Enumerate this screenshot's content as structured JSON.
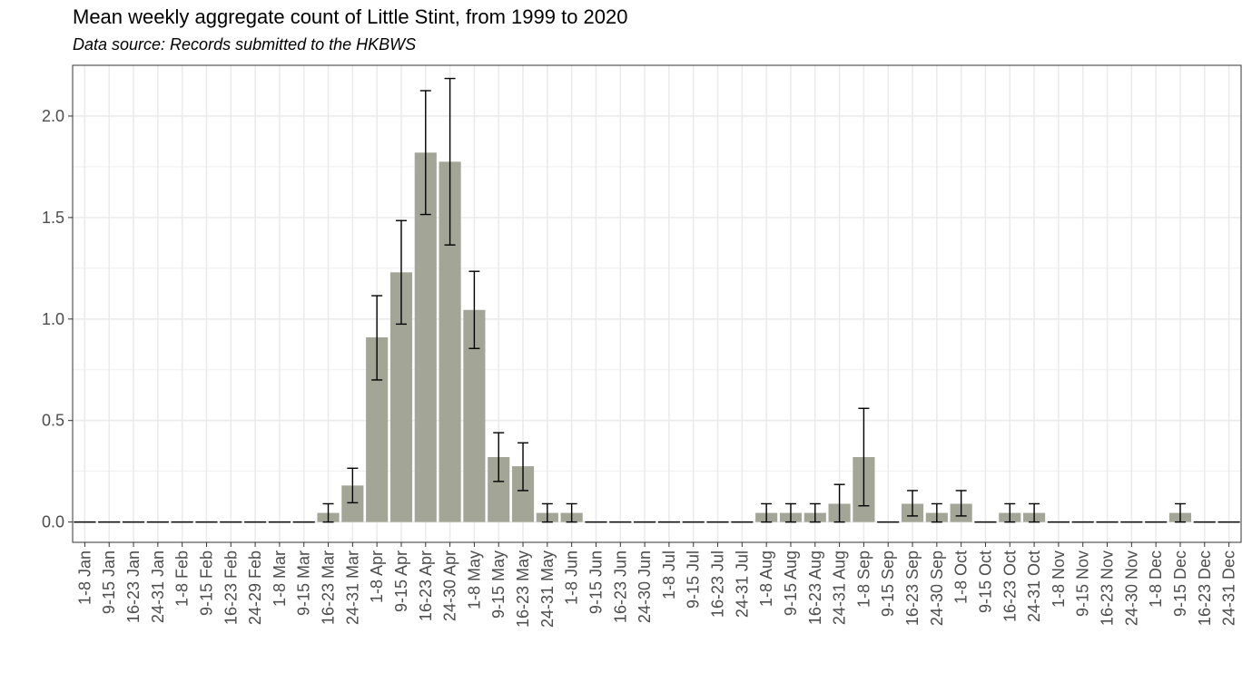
{
  "chart_data": {
    "type": "bar",
    "title": "Mean weekly aggregate count of Little Stint, from 1999 to 2020",
    "subtitle": "Data source: Records submitted to the HKBWS",
    "xlabel": "",
    "ylabel": "",
    "ylim": [
      -0.1,
      2.25
    ],
    "yticks": [
      0.0,
      0.5,
      1.0,
      1.5,
      2.0
    ],
    "ytick_labels": [
      "0.0",
      "0.5",
      "1.0",
      "1.5",
      "2.0"
    ],
    "grid": true,
    "colors": {
      "bar": "#a3a697",
      "error": "#000000",
      "grid": "#ebebeb",
      "zero_line": "#000000"
    },
    "categories": [
      "1-8 Jan",
      "9-15 Jan",
      "16-23 Jan",
      "24-31 Jan",
      "1-8 Feb",
      "9-15 Feb",
      "16-23 Feb",
      "24-29 Feb",
      "1-8 Mar",
      "9-15 Mar",
      "16-23 Mar",
      "24-31 Mar",
      "1-8 Apr",
      "9-15 Apr",
      "16-23 Apr",
      "24-30 Apr",
      "1-8 May",
      "9-15 May",
      "16-23 May",
      "24-31 May",
      "1-8 Jun",
      "9-15 Jun",
      "16-23 Jun",
      "24-30 Jun",
      "1-8 Jul",
      "9-15 Jul",
      "16-23 Jul",
      "24-31 Jul",
      "1-8 Aug",
      "9-15 Aug",
      "16-23 Aug",
      "24-31 Aug",
      "1-8 Sep",
      "9-15 Sep",
      "16-23 Sep",
      "24-30 Sep",
      "1-8 Oct",
      "9-15 Oct",
      "16-23 Oct",
      "24-31 Oct",
      "1-8 Nov",
      "9-15 Nov",
      "16-23 Nov",
      "24-30 Nov",
      "1-8 Dec",
      "9-15 Dec",
      "16-23 Dec",
      "24-31 Dec"
    ],
    "values": [
      0,
      0,
      0,
      0,
      0,
      0,
      0,
      0,
      0,
      0,
      0.045,
      0.18,
      0.91,
      1.23,
      1.82,
      1.775,
      1.045,
      0.32,
      0.275,
      0.045,
      0.045,
      0,
      0,
      0,
      0,
      0,
      0,
      0,
      0.045,
      0.045,
      0.045,
      0.09,
      0.32,
      0,
      0.09,
      0.045,
      0.09,
      0,
      0.045,
      0.045,
      0,
      0,
      0,
      0,
      0,
      0.045,
      0,
      0
    ],
    "error_low": [
      null,
      null,
      null,
      null,
      null,
      null,
      null,
      null,
      null,
      null,
      0.0,
      0.095,
      0.7,
      0.975,
      1.515,
      1.365,
      0.855,
      0.2,
      0.155,
      0.0,
      0.0,
      null,
      null,
      null,
      null,
      null,
      null,
      null,
      0.0,
      0.0,
      0.0,
      0.0,
      0.08,
      null,
      0.03,
      0.0,
      0.03,
      null,
      0.0,
      0.0,
      null,
      null,
      null,
      null,
      null,
      0.0,
      null,
      null
    ],
    "error_high": [
      null,
      null,
      null,
      null,
      null,
      null,
      null,
      null,
      null,
      null,
      0.09,
      0.265,
      1.115,
      1.485,
      2.125,
      2.185,
      1.235,
      0.44,
      0.39,
      0.09,
      0.09,
      null,
      null,
      null,
      null,
      null,
      null,
      null,
      0.09,
      0.09,
      0.09,
      0.185,
      0.56,
      null,
      0.155,
      0.09,
      0.155,
      null,
      0.09,
      0.09,
      null,
      null,
      null,
      null,
      null,
      0.09,
      null,
      null
    ]
  }
}
